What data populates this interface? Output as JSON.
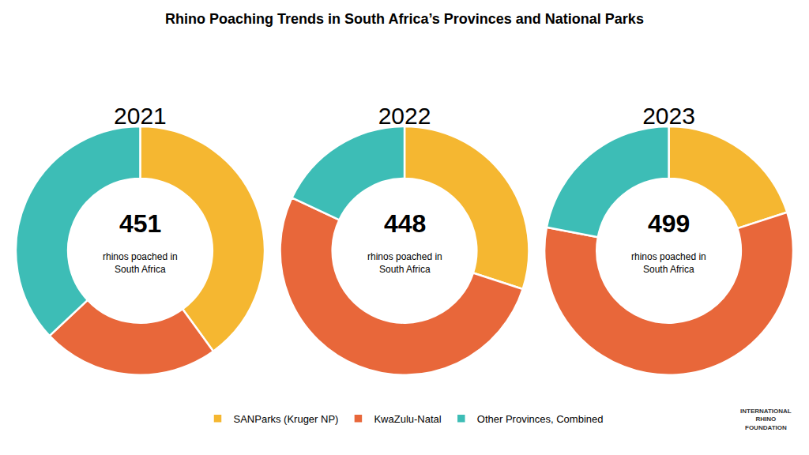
{
  "title": "Rhino Poaching Trends in South Africa’s Provinces and National Parks",
  "annotations": [
    "INTERNATIONAL\nRHINO\nFOUNDATION"
  ],
  "legend": "bottom",
  "chart_data": [
    {
      "type": "pie",
      "title": "2021",
      "categories": [
        "SANParks (Kruger NP)",
        "KwaZulu-Natal",
        "Other Provinces, Combined"
      ],
      "values": [
        40,
        23,
        37
      ],
      "colors": [
        "#F5B731",
        "#E8673A",
        "#3DBDB6"
      ],
      "annotations": [
        "451",
        "rhinos poached in\nSouth Africa"
      ]
    },
    {
      "type": "pie",
      "title": "2022",
      "categories": [
        "SANParks (Kruger NP)",
        "KwaZulu-Natal",
        "Other Provinces, Combined"
      ],
      "values": [
        30,
        52,
        18
      ],
      "colors": [
        "#F5B731",
        "#E8673A",
        "#3DBDB6"
      ],
      "annotations": [
        "448",
        "rhinos poached in\nSouth Africa"
      ]
    },
    {
      "type": "pie",
      "title": "2023",
      "categories": [
        "SANParks (Kruger NP)",
        "KwaZulu-Natal",
        "Other Provinces, Combined"
      ],
      "values": [
        20,
        58,
        22
      ],
      "colors": [
        "#F5B731",
        "#E8673A",
        "#3DBDB6"
      ],
      "annotations": [
        "499",
        "rhinos poached in\nSouth Africa"
      ]
    }
  ]
}
